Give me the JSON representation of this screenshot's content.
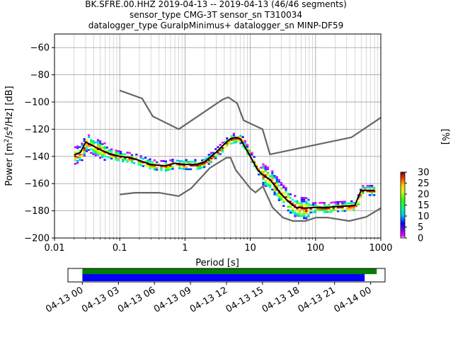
{
  "title_lines": [
    "BK.SFRE.00.HHZ   2019-04-13 -- 2019-04-13  (46/46 segments)",
    "sensor_type CMG-3T sensor_sn T310034",
    "datalogger_type GuralpMinimus+ datalogger_sn MINP-DF59"
  ],
  "chart_data": [
    {
      "type": "heatmap",
      "title": "BK.SFRE.00.HHZ   2019-04-13 -- 2019-04-13  (46/46 segments)",
      "xlabel": "Period [s]",
      "ylabel": "Power [m²/s⁴/Hz] [dB]",
      "xscale": "log",
      "xlim": [
        0.01,
        1000
      ],
      "ylim": [
        -200,
        -50
      ],
      "x_ticks": [
        0.01,
        0.1,
        1,
        10,
        100,
        1000
      ],
      "x_tick_labels": [
        "0.01",
        "0.1",
        "1",
        "10",
        "100",
        "1000"
      ],
      "y_ticks": [
        -200,
        -180,
        -160,
        -140,
        -120,
        -100,
        -80,
        -60
      ],
      "y_tick_labels": [
        "−200",
        "−180",
        "−160",
        "−140",
        "−120",
        "−100",
        "−80",
        "−60"
      ],
      "grid": true,
      "noise_models": {
        "high": {
          "color": "#666666",
          "x": [
            0.1,
            0.22,
            0.32,
            0.8,
            3.8,
            4.6,
            6.3,
            7.9,
            15.4,
            20,
            354.8,
            1000
          ],
          "y": [
            -91.5,
            -97.4,
            -110.5,
            -120,
            -98,
            -96.5,
            -101,
            -113.5,
            -120,
            -138.5,
            -126,
            -111.5
          ]
        },
        "low": {
          "color": "#666666",
          "x": [
            0.1,
            0.17,
            0.4,
            0.8,
            1.24,
            2.4,
            4.3,
            5,
            6,
            10,
            12,
            15.6,
            21.9,
            31.6,
            45,
            70,
            101,
            154,
            328,
            600,
            1000
          ],
          "y": [
            -168,
            -166.7,
            -166.7,
            -169.2,
            -163.5,
            -148.5,
            -141,
            -141,
            -150,
            -163.5,
            -166.5,
            -162,
            -177.5,
            -185,
            -187.5,
            -187.5,
            -185,
            -185,
            -187.5,
            -184.5,
            -178
          ]
        }
      },
      "mean_curve": {
        "color": "#000000",
        "x": [
          0.02,
          0.025,
          0.03,
          0.035,
          0.05,
          0.07,
          0.1,
          0.15,
          0.2,
          0.3,
          0.5,
          0.7,
          1,
          1.5,
          2,
          3,
          4,
          5,
          6,
          7,
          8,
          10,
          13,
          15,
          20,
          25,
          30,
          40,
          50,
          70,
          100,
          150,
          200,
          300,
          400,
          500,
          600,
          800
        ],
        "y": [
          -139,
          -137,
          -129.5,
          -131,
          -135,
          -138,
          -140,
          -141,
          -143,
          -146,
          -147,
          -145,
          -146,
          -146,
          -144,
          -137,
          -131,
          -127,
          -126,
          -127,
          -132,
          -140,
          -150,
          -153,
          -157,
          -163,
          -168,
          -174,
          -177.5,
          -178,
          -177.5,
          -177.5,
          -177,
          -176.5,
          -176,
          -165,
          -165,
          -165
        ]
      },
      "colorbar": {
        "label": "[%]",
        "min": 0,
        "max": 30,
        "ticks": [
          0,
          5,
          10,
          15,
          20,
          25,
          30
        ],
        "colormap": "pqlx"
      }
    },
    {
      "type": "bar",
      "title": "",
      "xlabel": "",
      "ylabel": "",
      "x_tick_labels": [
        "04-13 00",
        "04-13 03",
        "04-13 06",
        "04-13 09",
        "04-13 12",
        "04-13 15",
        "04-13 18",
        "04-13 21",
        "04-14 00"
      ],
      "x_range_hours": [
        -1.2,
        25.2
      ],
      "series": [
        {
          "color": "#008000",
          "start_hour": 0,
          "end_hour": 24.5
        },
        {
          "color": "#0000ff",
          "start_hour": 0,
          "end_hour": 23.5
        }
      ]
    }
  ]
}
